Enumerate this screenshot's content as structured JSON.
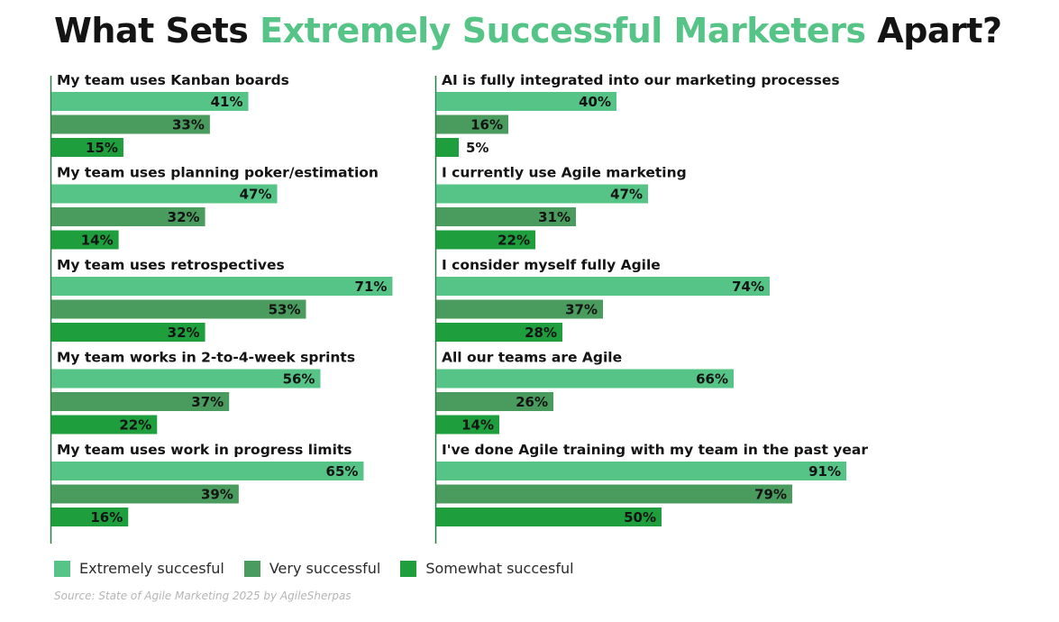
{
  "title": {
    "part1": "What Sets ",
    "highlight": "Extremely Successful Marketers",
    "part2": " Apart?"
  },
  "colors": {
    "extremely": "#55c486",
    "very": "#4a9b5e",
    "somewhat": "#1f9e3d",
    "highlight": "#55c486"
  },
  "legend": [
    {
      "label": "Extremely succesful",
      "color": "#55c486"
    },
    {
      "label": "Very successful",
      "color": "#4a9b5e"
    },
    {
      "label": "Somewhat succesful",
      "color": "#1f9e3d"
    }
  ],
  "source": "Source: State of Agile Marketing 2025 by AgileSherpas",
  "chart_data": {
    "type": "bar",
    "orientation": "horizontal",
    "series_names": [
      "Extremely succesful",
      "Very successful",
      "Somewhat succesful"
    ],
    "xlim": [
      0,
      100
    ],
    "panels": [
      {
        "groups": [
          {
            "label": "My team uses Kanban boards",
            "values": [
              41,
              33,
              15
            ]
          },
          {
            "label": "My team uses planning poker/estimation",
            "values": [
              47,
              32,
              14
            ]
          },
          {
            "label": "My team uses retrospectives",
            "values": [
              71,
              53,
              32
            ]
          },
          {
            "label": "My team works in 2-to-4-week sprints",
            "values": [
              56,
              37,
              22
            ]
          },
          {
            "label": "My team uses work in progress limits",
            "values": [
              65,
              39,
              16
            ]
          }
        ]
      },
      {
        "groups": [
          {
            "label": "AI is fully integrated into our marketing processes",
            "values": [
              40,
              16,
              5
            ]
          },
          {
            "label": "I currently use Agile marketing",
            "values": [
              47,
              31,
              22
            ]
          },
          {
            "label": "I consider myself fully Agile",
            "values": [
              74,
              37,
              28
            ]
          },
          {
            "label": "All our teams are Agile",
            "values": [
              66,
              26,
              14
            ]
          },
          {
            "label": "I've done Agile training with my team in the past year",
            "values": [
              91,
              79,
              50
            ]
          }
        ]
      }
    ]
  }
}
